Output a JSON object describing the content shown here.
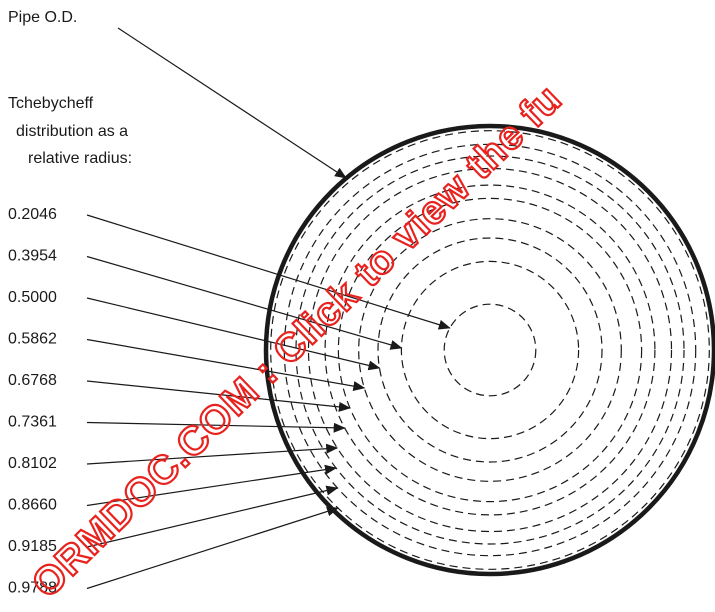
{
  "diagram": {
    "pipe_label": "Pipe O.D.",
    "heading_lines": [
      "Tchebycheff",
      "distribution as a",
      "relative radius:"
    ],
    "radii": [
      "0.2046",
      "0.3954",
      "0.5000",
      "0.5862",
      "0.6768",
      "0.7361",
      "0.8102",
      "0.8660",
      "0.9185",
      "0.9788"
    ],
    "values": [
      0.2046,
      0.3954,
      0.5,
      0.5862,
      0.6768,
      0.7361,
      0.8102,
      0.866,
      0.9185,
      0.9788
    ]
  },
  "watermark": {
    "text": "ORMDOC.COM : Click to view the fu",
    "color": "#e8231f"
  },
  "colors": {
    "ink": "#1a1a1a"
  }
}
